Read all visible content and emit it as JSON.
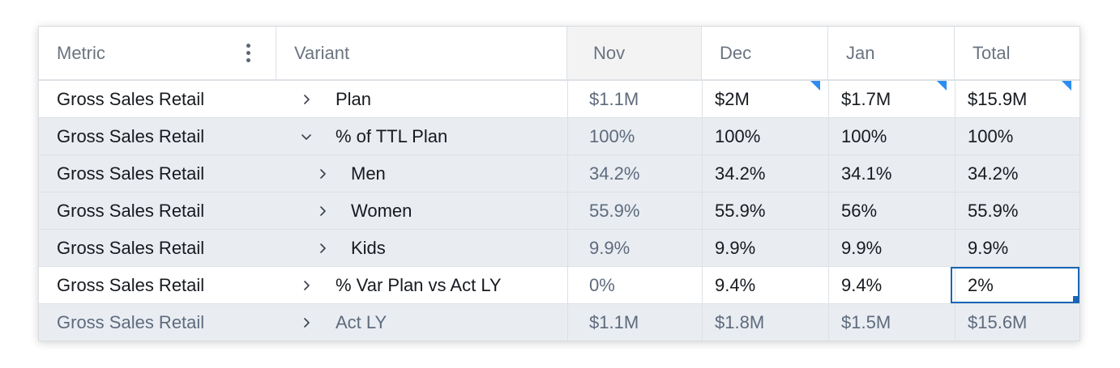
{
  "columns": {
    "metric": "Metric",
    "variant": "Variant",
    "months": [
      "Nov",
      "Dec",
      "Jan"
    ],
    "total": "Total"
  },
  "rows": [
    {
      "metric": "Gross Sales Retail",
      "chevron": "right",
      "variant": "Plan",
      "values": [
        "$1.1M",
        "$2M",
        "$1.7M",
        "$15.9M"
      ],
      "style": "white",
      "indent": 0
    },
    {
      "metric": "Gross Sales Retail",
      "chevron": "down",
      "variant": "% of TTL Plan",
      "values": [
        "100%",
        "100%",
        "100%",
        "100%"
      ],
      "style": "shade",
      "indent": 0
    },
    {
      "metric": "Gross Sales Retail",
      "chevron": "right",
      "variant": "Men",
      "values": [
        "34.2%",
        "34.2%",
        "34.1%",
        "34.2%"
      ],
      "style": "shade",
      "indent": 1
    },
    {
      "metric": "Gross Sales Retail",
      "chevron": "right",
      "variant": "Women",
      "values": [
        "55.9%",
        "55.9%",
        "56%",
        "55.9%"
      ],
      "style": "shade",
      "indent": 1
    },
    {
      "metric": "Gross Sales Retail",
      "chevron": "right",
      "variant": "Kids",
      "values": [
        "9.9%",
        "9.9%",
        "9.9%",
        "9.9%"
      ],
      "style": "shade",
      "indent": 1
    },
    {
      "metric": "Gross Sales Retail",
      "chevron": "right",
      "variant": "% Var Plan vs Act LY",
      "values": [
        "0%",
        "9.4%",
        "9.4%",
        "2%"
      ],
      "style": "white",
      "indent": 0
    },
    {
      "metric": "Gross Sales Retail",
      "chevron": "right",
      "variant": "Act LY",
      "values": [
        "$1.1M",
        "$1.8M",
        "$1.5M",
        "$15.6M"
      ],
      "style": "shade-muted",
      "indent": 0
    }
  ],
  "colors": {
    "accent": "#2c8df0",
    "selection": "#1a66b5",
    "shade": "#e9edf2",
    "muted_text": "#5e6b7d"
  }
}
